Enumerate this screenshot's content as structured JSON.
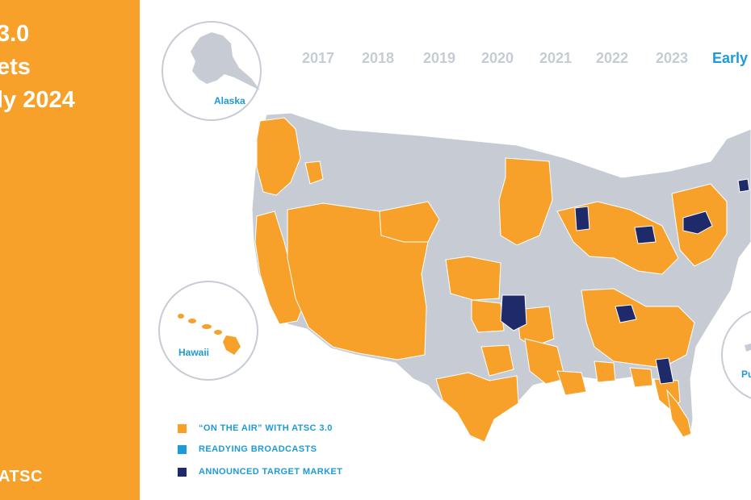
{
  "side_panel": {
    "title_lines": [
      "3.0",
      "ets",
      "ly 2024"
    ],
    "logo_text": "ATSC",
    "color": "#f7a12a"
  },
  "timeline": {
    "years": [
      "2017",
      "2018",
      "2019",
      "2020",
      "2021",
      "2022",
      "2023",
      "Early"
    ],
    "active": "Early"
  },
  "insets": {
    "alaska": "Alaska",
    "hawaii": "Hawaii",
    "puerto_rico": "Pu"
  },
  "legend": {
    "items": [
      {
        "label": "“ON THE AIR” WITH ATSC 3.0",
        "color": "#f7a12a"
      },
      {
        "label": "READYING BROADCASTS",
        "color": "#1e9ad6"
      },
      {
        "label": "ANNOUNCED TARGET MARKET",
        "color": "#1f2a6b"
      }
    ]
  },
  "colors": {
    "on_air": "#f7a12a",
    "readying": "#1e9ad6",
    "target": "#1f2a6b",
    "base": "#c7ccd4",
    "border": "#ffffff"
  }
}
